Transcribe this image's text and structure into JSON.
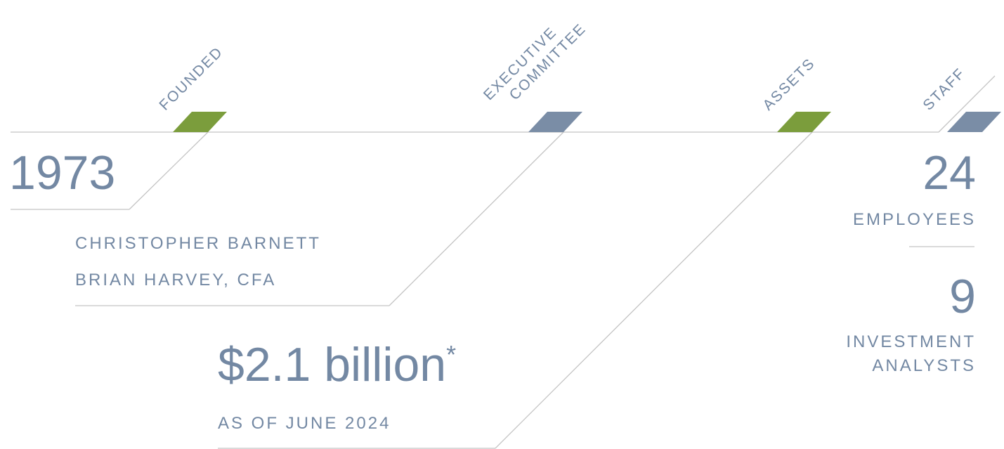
{
  "tags": {
    "founded": "FOUNDED",
    "executive_line1": "EXECUTIVE",
    "executive_line2": "COMMITTEE",
    "assets": "ASSETS",
    "staff": "STAFF"
  },
  "founded": {
    "year": "1973"
  },
  "committee": {
    "members": [
      "CHRISTOPHER BARNETT",
      "BRIAN HARVEY, CFA"
    ]
  },
  "assets": {
    "amount": "$2.1 billion",
    "footnote_mark": "*",
    "as_of": "AS OF JUNE 2024"
  },
  "staff": {
    "employees_count": "24",
    "employees_label": "EMPLOYEES",
    "analysts_count": "9",
    "analysts_label_line1": "INVESTMENT",
    "analysts_label_line2": "ANALYSTS"
  },
  "colors": {
    "text": "#7388a3",
    "green": "#7b9d3c",
    "slate": "#7a8da6",
    "line": "#bdbdbd"
  }
}
